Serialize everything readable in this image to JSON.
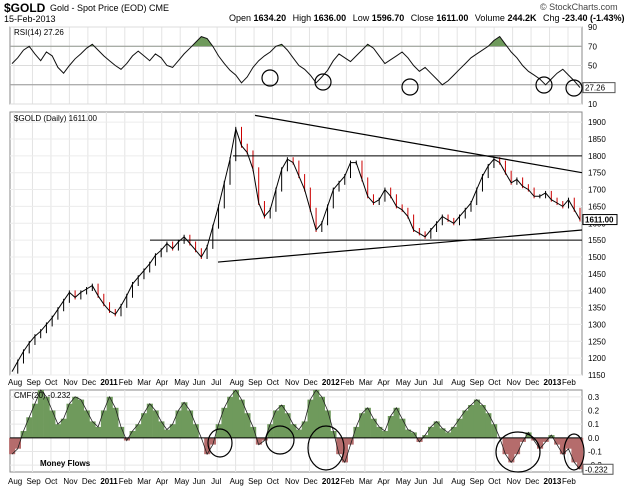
{
  "header": {
    "ticker": "$GOLD",
    "name": "Gold - Spot Price (EOD)",
    "exchange": "CME",
    "date": "15-Feb-2013",
    "open_label": "Open",
    "open": "1634.20",
    "high_label": "High",
    "high": "1636.00",
    "low_label": "Low",
    "low": "1596.70",
    "close_label": "Close",
    "close": "1611.00",
    "volume_label": "Volume",
    "volume": "244.2K",
    "chg_label": "Chg",
    "chg": "-23.40 (-1.43%)",
    "brand": "© StockCharts.com"
  },
  "chart_data": [
    {
      "type": "line",
      "title": "RSI(14) 27.26",
      "current_value_label": "27.26",
      "y_ticks": [
        "90",
        "70",
        "50",
        "30",
        "10"
      ],
      "ylim": [
        10,
        90
      ],
      "reference_lines": [
        30,
        70
      ],
      "series": [
        {
          "values": [
            52,
            58,
            66,
            70,
            62,
            55,
            64,
            60,
            48,
            42,
            50,
            57,
            62,
            68,
            72,
            66,
            60,
            55,
            50,
            46,
            52,
            60,
            65,
            60,
            55,
            62,
            58,
            50,
            48,
            55,
            62,
            68,
            74,
            80,
            78,
            70,
            60,
            52,
            45,
            40,
            32,
            38,
            48,
            55,
            60,
            64,
            70,
            72,
            66,
            58,
            50,
            46,
            40,
            32,
            38,
            45,
            55,
            62,
            58,
            54,
            60,
            66,
            72,
            68,
            60,
            52,
            56,
            60,
            64,
            58,
            50,
            44,
            48,
            42,
            36,
            30,
            34,
            40,
            46,
            52,
            58,
            62,
            66,
            70,
            76,
            80,
            72,
            64,
            58,
            50,
            44,
            40,
            36,
            30,
            36,
            42,
            46,
            40,
            34,
            27
          ]
        }
      ]
    },
    {
      "type": "line",
      "title": "$GOLD (Daily) 1611.00",
      "current_value_label": "1611.00",
      "y_ticks": [
        "1900",
        "1850",
        "1800",
        "1750",
        "1700",
        "1650",
        "1600",
        "1550",
        "1500",
        "1450",
        "1400",
        "1350",
        "1300",
        "1250",
        "1200",
        "1150"
      ],
      "ylim": [
        1150,
        1930
      ],
      "x_ticks": [
        "Aug",
        "Sep",
        "Oct",
        "Nov",
        "Dec",
        "2011",
        "Feb",
        "Mar",
        "Apr",
        "May",
        "Jun",
        "Jul",
        "Aug",
        "Sep",
        "Oct",
        "Nov",
        "Dec",
        "2012",
        "Feb",
        "Mar",
        "Apr",
        "May",
        "Jun",
        "Jul",
        "Aug",
        "Sep",
        "Oct",
        "Nov",
        "Dec",
        "2013",
        "Feb"
      ],
      "series": [
        {
          "values": [
            1160,
            1190,
            1220,
            1245,
            1265,
            1280,
            1300,
            1320,
            1345,
            1370,
            1395,
            1380,
            1395,
            1405,
            1415,
            1385,
            1360,
            1340,
            1330,
            1355,
            1385,
            1420,
            1440,
            1460,
            1480,
            1505,
            1520,
            1540,
            1525,
            1545,
            1560,
            1540,
            1520,
            1500,
            1530,
            1590,
            1650,
            1720,
            1790,
            1880,
            1830,
            1810,
            1760,
            1660,
            1620,
            1640,
            1700,
            1760,
            1790,
            1780,
            1740,
            1700,
            1640,
            1580,
            1600,
            1650,
            1700,
            1720,
            1740,
            1780,
            1780,
            1730,
            1680,
            1660,
            1670,
            1700,
            1680,
            1650,
            1640,
            1620,
            1580,
            1570,
            1560,
            1580,
            1600,
            1620,
            1610,
            1600,
            1620,
            1640,
            1660,
            1700,
            1740,
            1770,
            1790,
            1780,
            1750,
            1720,
            1730,
            1710,
            1700,
            1680,
            1680,
            1690,
            1670,
            1660,
            1650,
            1670,
            1640,
            1611
          ]
        }
      ],
      "trend_lines": [
        {
          "from": [
            "Aug 2011",
            1920
          ],
          "to": [
            "Feb 2013",
            1750
          ]
        },
        {
          "from": [
            "Jul 2011",
            1485
          ],
          "to": [
            "Feb 2013",
            1580
          ]
        }
      ],
      "horizontal_levels": [
        1800,
        1550
      ]
    },
    {
      "type": "area",
      "title": "CMF(20) -0.232",
      "current_value_label": "-0.232",
      "y_ticks": [
        "0.3",
        "0.2",
        "0.1",
        "0.0",
        "-0.1",
        "-0.2"
      ],
      "ylim": [
        -0.25,
        0.35
      ],
      "annotations": [
        "Money Flows"
      ],
      "series": [
        {
          "values": [
            -0.12,
            -0.08,
            0.05,
            0.15,
            0.25,
            0.35,
            0.3,
            0.2,
            0.1,
            0.14,
            0.25,
            0.3,
            0.28,
            0.2,
            0.12,
            0.08,
            0.2,
            0.3,
            0.22,
            0.08,
            -0.02,
            0.05,
            0.1,
            0.18,
            0.25,
            0.2,
            0.12,
            0.06,
            0.1,
            0.2,
            0.26,
            0.2,
            0.1,
            0.0,
            -0.12,
            -0.05,
            0.1,
            0.22,
            0.3,
            0.35,
            0.28,
            0.18,
            0.08,
            -0.05,
            -0.02,
            0.1,
            0.2,
            0.24,
            0.18,
            0.1,
            0.06,
            0.12,
            0.28,
            0.35,
            0.3,
            0.2,
            0.05,
            -0.12,
            -0.18,
            -0.05,
            0.08,
            0.18,
            0.22,
            0.14,
            0.08,
            0.05,
            0.16,
            0.22,
            0.14,
            0.06,
            0.04,
            -0.03,
            0.02,
            0.08,
            0.12,
            0.07,
            0.04,
            0.08,
            0.14,
            0.2,
            0.24,
            0.28,
            0.24,
            0.18,
            0.1,
            0.0,
            -0.12,
            -0.18,
            -0.12,
            -0.03,
            0.04,
            -0.02,
            -0.08,
            -0.03,
            0.02,
            -0.05,
            -0.12,
            -0.08,
            -0.18,
            -0.23
          ]
        }
      ]
    }
  ]
}
